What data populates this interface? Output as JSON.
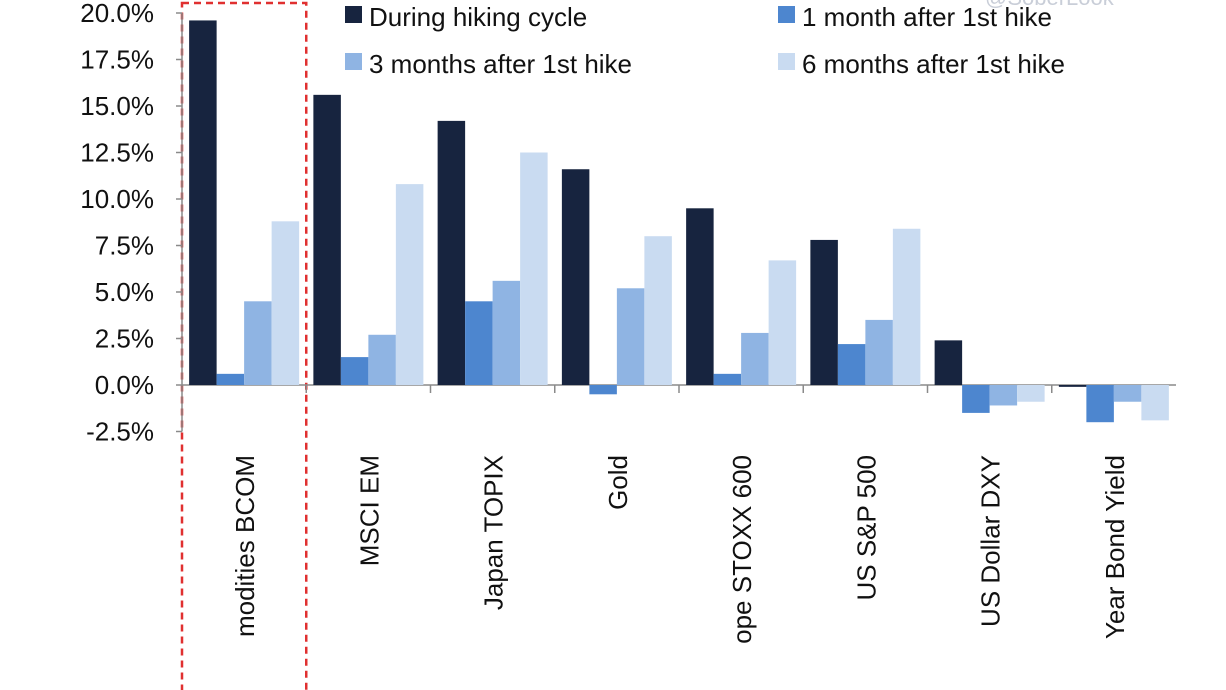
{
  "chart_data": {
    "type": "bar",
    "title": "",
    "xlabel": "",
    "ylabel": "",
    "ylim": [
      -2.5,
      20.0
    ],
    "y_ticks": [
      "-2.5%",
      "0.0%",
      "2.5%",
      "5.0%",
      "7.5%",
      "10.0%",
      "12.5%",
      "15.0%",
      "17.5%",
      "20.0%"
    ],
    "y_tick_values": [
      -2.5,
      0,
      2.5,
      5,
      7.5,
      10,
      12.5,
      15,
      17.5,
      20
    ],
    "categories": [
      "modities BCOM",
      "MSCI EM",
      "Japan TOPIX",
      "Gold",
      "ope STOXX 600",
      "US S&P 500",
      "US Dollar DXY",
      "Year Bond Yield"
    ],
    "series": [
      {
        "name": "During hiking cycle",
        "color": "#17243f",
        "values": [
          19.6,
          15.6,
          14.2,
          11.6,
          9.5,
          7.8,
          2.4,
          -0.1
        ]
      },
      {
        "name": "1 month after 1st hike",
        "color": "#4d86cf",
        "values": [
          0.6,
          1.5,
          4.5,
          -0.5,
          0.6,
          2.2,
          -1.5,
          -2.0
        ]
      },
      {
        "name": "3 months after 1st hike",
        "color": "#8fb4e3",
        "values": [
          4.5,
          2.7,
          5.6,
          5.2,
          2.8,
          3.5,
          -1.1,
          -0.9
        ]
      },
      {
        "name": "6 months after 1st hike",
        "color": "#c9dbf1",
        "values": [
          8.8,
          10.8,
          12.5,
          8.0,
          6.7,
          8.4,
          -0.9,
          -1.9
        ]
      }
    ],
    "legend_position": "top-right",
    "grid": false,
    "highlight": {
      "category": "modities BCOM",
      "style": "red dashed box",
      "color": "#e03030"
    },
    "watermark": "@SoberLook"
  }
}
